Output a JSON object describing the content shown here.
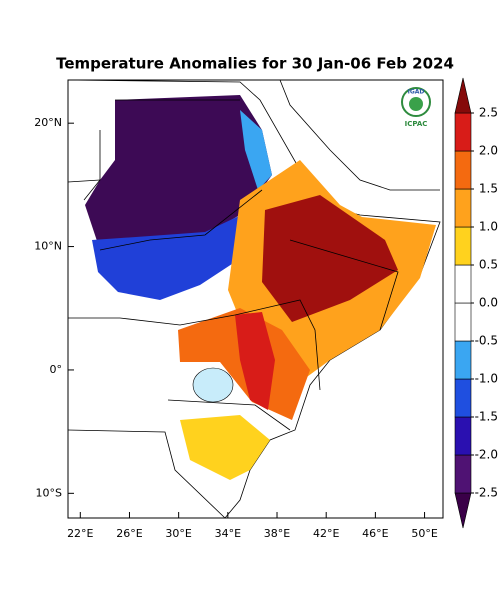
{
  "map": {
    "title": "Temperature Anomalies for 30 Jan-06 Feb 2024",
    "logo": {
      "name": "IGAD",
      "caption": "ICPAC"
    },
    "xlim": [
      21,
      51.5
    ],
    "ylim": [
      -12,
      23.5
    ],
    "xticks": [
      {
        "value": 22,
        "label": "22°E"
      },
      {
        "value": 26,
        "label": "26°E"
      },
      {
        "value": 30,
        "label": "30°E"
      },
      {
        "value": 34,
        "label": "34°E"
      },
      {
        "value": 38,
        "label": "38°E"
      },
      {
        "value": 42,
        "label": "42°E"
      },
      {
        "value": 46,
        "label": "46°E"
      },
      {
        "value": 50,
        "label": "50°E"
      }
    ],
    "yticks": [
      {
        "value": 20,
        "label": "20°N"
      },
      {
        "value": 10,
        "label": "10°N"
      },
      {
        "value": 0,
        "label": "0°"
      },
      {
        "value": -10,
        "label": "10°S"
      }
    ],
    "colorbar": {
      "ticks": [
        2.5,
        {
          "value": 2,
          "label": "2.0"
        },
        1.5,
        {
          "value": 1,
          "label": "1.0"
        },
        0.5,
        {
          "value": 0,
          "label": "0.0"
        },
        -0.5,
        {
          "value": -1,
          "label": "-1.0"
        },
        -1.5,
        {
          "value": -2,
          "label": "-2.0"
        },
        -2.5
      ],
      "colors": [
        "#3a0048",
        "#4f1273",
        "#2a10b0",
        "#1f4fe0",
        "#3aa6f2",
        "#ffffff",
        "#ffffff",
        "#ffd21e",
        "#ffa21c",
        "#f46a10",
        "#d81c18",
        "#850a0a"
      ]
    }
  }
}
